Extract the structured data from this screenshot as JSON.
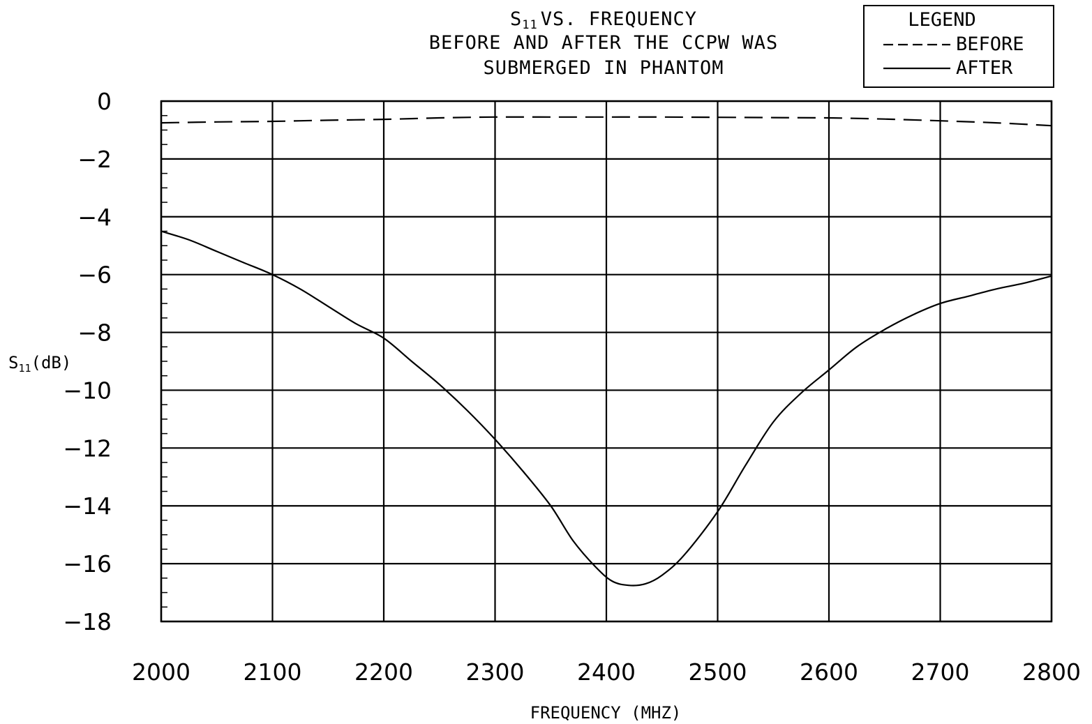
{
  "chart_data": {
    "type": "line",
    "title_s": "S",
    "title_sub": "11",
    "title_rest": "VS. FREQUENCY",
    "subtitle_lines": [
      "BEFORE AND AFTER THE CCPW WAS",
      "SUBMERGED IN PHANTOM"
    ],
    "xlabel": "FREQUENCY (MHZ)",
    "ylabel_s": "S",
    "ylabel_sub": "11",
    "ylabel_rest": "(dB)",
    "xlim": [
      2000,
      2800
    ],
    "ylim": [
      -18,
      0
    ],
    "x_ticks": [
      2000,
      2100,
      2200,
      2300,
      2400,
      2500,
      2600,
      2700,
      2800
    ],
    "y_ticks": [
      0,
      -2,
      -4,
      -6,
      -8,
      -10,
      -12,
      -14,
      -16,
      -18
    ],
    "x_tick_labels": [
      "2000",
      "2100",
      "2200",
      "2300",
      "2400",
      "2500",
      "2600",
      "2700",
      "2800"
    ],
    "y_tick_labels": [
      "0",
      "-2",
      "-4",
      "-6",
      "-8",
      "-10",
      "-12",
      "-14",
      "-16",
      "-18"
    ],
    "grid": true,
    "legend": {
      "title": "LEGEND",
      "position": "top-right",
      "entries": [
        "BEFORE",
        "AFTER"
      ]
    },
    "series": [
      {
        "name": "BEFORE",
        "style": "dashed",
        "color": "#000000",
        "x": [
          2000,
          2050,
          2100,
          2150,
          2200,
          2250,
          2300,
          2350,
          2400,
          2450,
          2500,
          2550,
          2600,
          2650,
          2700,
          2750,
          2800
        ],
        "y": [
          -0.75,
          -0.72,
          -0.7,
          -0.66,
          -0.63,
          -0.58,
          -0.55,
          -0.55,
          -0.55,
          -0.55,
          -0.56,
          -0.57,
          -0.58,
          -0.62,
          -0.68,
          -0.75,
          -0.85
        ]
      },
      {
        "name": "AFTER",
        "style": "solid",
        "color": "#000000",
        "x": [
          2000,
          2025,
          2050,
          2075,
          2100,
          2125,
          2150,
          2175,
          2200,
          2225,
          2250,
          2275,
          2300,
          2325,
          2350,
          2370,
          2390,
          2405,
          2420,
          2435,
          2450,
          2470,
          2500,
          2525,
          2550,
          2575,
          2600,
          2625,
          2650,
          2675,
          2700,
          2725,
          2750,
          2775,
          2800
        ],
        "y": [
          -4.5,
          -4.8,
          -5.2,
          -5.6,
          -6.0,
          -6.5,
          -7.1,
          -7.7,
          -8.2,
          -9.0,
          -9.8,
          -10.7,
          -11.7,
          -12.8,
          -14.0,
          -15.2,
          -16.1,
          -16.6,
          -16.75,
          -16.7,
          -16.4,
          -15.7,
          -14.2,
          -12.6,
          -11.1,
          -10.1,
          -9.3,
          -8.5,
          -7.9,
          -7.4,
          -7.0,
          -6.75,
          -6.5,
          -6.3,
          -6.05
        ]
      }
    ]
  }
}
